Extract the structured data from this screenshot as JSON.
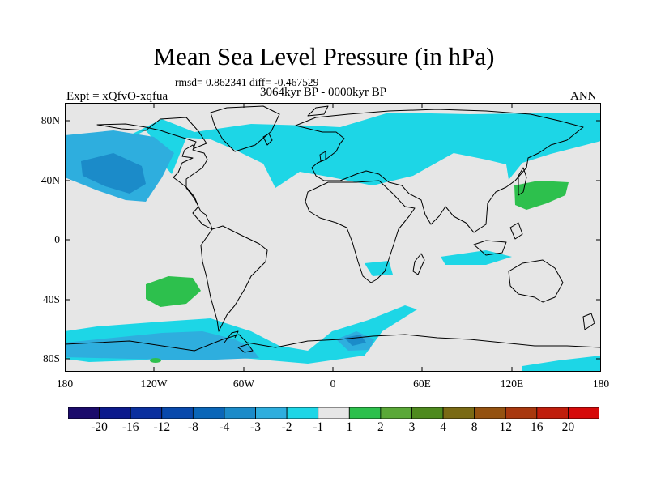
{
  "title": "Mean Sea Level Pressure (in hPa)",
  "stats": "rmsd= 0.862341 diff= -0.467529",
  "period": "3064kyr BP - 0000kyr BP",
  "experiment": "Expt = xQfvO-xqfua",
  "season": "ANN",
  "lat_ticks": [
    "80N",
    "40N",
    "0",
    "40S",
    "80S"
  ],
  "lon_ticks": [
    "180",
    "120W",
    "60W",
    "0",
    "60E",
    "120E",
    "180"
  ],
  "colorbar": {
    "labels": [
      "-20",
      "-16",
      "-12",
      "-8",
      "-4",
      "-3",
      "-2",
      "-1",
      "1",
      "2",
      "3",
      "4",
      "8",
      "12",
      "16",
      "20"
    ],
    "colors": [
      "#1b0b6b",
      "#0c1a8c",
      "#0a2f9e",
      "#0849ac",
      "#0a66b8",
      "#1b8bc9",
      "#2eaede",
      "#1dd6e6",
      "#e6e6e6",
      "#2dc04d",
      "#5aa838",
      "#4e8a1e",
      "#7a6a14",
      "#945210",
      "#a8380e",
      "#c01e0c",
      "#d60a0a"
    ]
  },
  "colors": {
    "background": "#e6e6e6",
    "cyan": "#1dd6e6",
    "blue": "#2eaede",
    "darkblue": "#1b8bc9",
    "green": "#2dc04d"
  }
}
